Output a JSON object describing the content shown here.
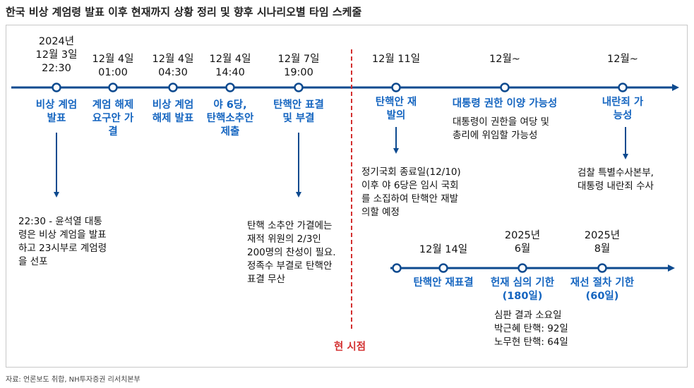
{
  "title": "한국 비상 계엄령 발표 이후 현재까지 상황 정리 및 향후 시나리오별 타임 스케줄",
  "source": "자료: 언론보도 취합, NH투자증권 리서치본부",
  "now_label": "현 시점",
  "colors": {
    "line": "#0d4a8f",
    "event": "#1565c0",
    "now": "#d32f2f"
  },
  "top": [
    {
      "date": "2024년\n12월 3일\n22:30",
      "event": "비상 계엄\n발표"
    },
    {
      "date": "12월 4일\n01:00",
      "event": "계엄 해제\n요구안 가\n결"
    },
    {
      "date": "12월 4일\n04:30",
      "event": "비상 계엄\n해제 발표"
    },
    {
      "date": "12월 4일\n14:40",
      "event": "야 6당,\n탄핵소추안\n제출"
    },
    {
      "date": "12월 7일\n19:00",
      "event": "탄핵안 표결\n및 부결"
    },
    {
      "date": "12월 11일",
      "event": "탄핵안 재\n발의"
    },
    {
      "date": "12월~",
      "event": "대통령 권한 이양 가능성"
    },
    {
      "date": "12월~",
      "event": "내란죄 가\n능성"
    }
  ],
  "top_notes": [
    "22:30 - 윤석열 대통\n령은 비상 계엄을 발표\n하고 23시부로 계엄령\n을 선포",
    "탄핵 소추안 가결에는\n재적 위원의 2/3인\n200명의 찬성이 필요.\n정족수 부결로 탄핵안\n표결 무산",
    "정기국회 종료일(12/10)\n이후 야 6당은 임시 국회\n를 소집하여 탄핵안 재발\n의할 예정",
    "대통령이 권한을 여당 및\n총리에 위임할 가능성",
    "검찰 특별수사본부,\n대통령 내란죄 수사"
  ],
  "bottom": [
    {
      "date": "12월 14일",
      "event": "탄핵안 재표결"
    },
    {
      "date": "2025년\n6월",
      "event": "헌재 심의 기한\n(180일)"
    },
    {
      "date": "2025년\n8월",
      "event": "재선 절차 기한\n(60일)"
    }
  ],
  "bottom_note": "심판 결과 소요일\n박근혜 탄핵: 92일\n노무현 탄핵: 64일"
}
